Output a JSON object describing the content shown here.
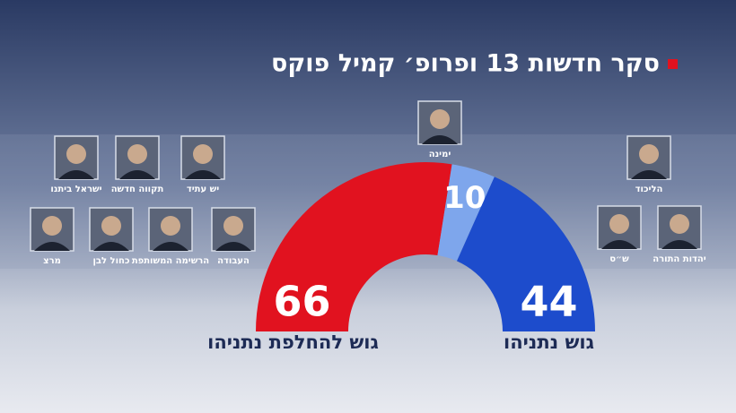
{
  "chart_data": {
    "type": "half-donut",
    "title": "סקר חדשות 13 ופרופ׳ קמיל פוקס",
    "categories": [
      "גוש להחלפת נתניהו",
      "ימינה",
      "גוש נתניהו"
    ],
    "values": [
      66,
      10,
      44
    ],
    "colors": [
      "#e1121f",
      "#7ea6ec",
      "#1d4ccc"
    ],
    "annotations": [
      "ישראל ביתנו",
      "תקווה חדשה",
      "יש עתיד",
      "מרצ",
      "כחול לבן",
      "הרשימה המשותפת",
      "העבודה",
      "הליכוד",
      "ש״ס",
      "יהדות התורה"
    ]
  }
}
